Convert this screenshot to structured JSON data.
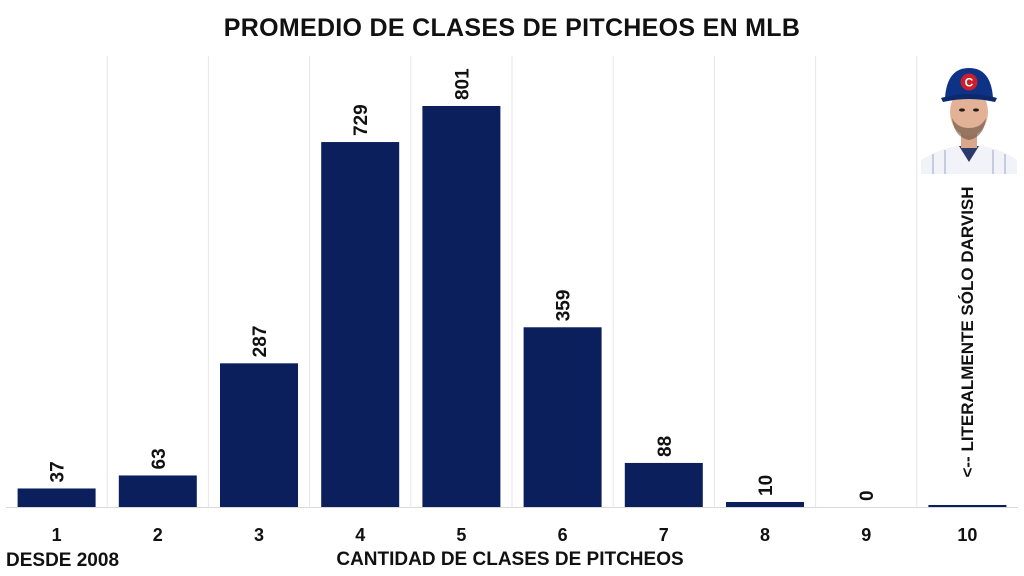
{
  "chart_data": {
    "type": "bar",
    "title": "PROMEDIO DE CLASES DE PITCHEOS EN MLB",
    "xlabel": "CANTIDAD DE CLASES DE PITCHEOS",
    "ylabel": "",
    "categories": [
      "1",
      "2",
      "3",
      "4",
      "5",
      "6",
      "7",
      "8",
      "9",
      "10"
    ],
    "values": [
      37,
      63,
      287,
      729,
      801,
      359,
      88,
      10,
      0,
      1
    ],
    "data_labels": [
      "37",
      "63",
      "287",
      "729",
      "801",
      "359",
      "88",
      "10",
      "0",
      ""
    ],
    "ylim": [
      0,
      801
    ],
    "grid": "vertical",
    "bar_color": "#0a1f5c",
    "footnote": "DESDE 2008",
    "annotation": "<-- LITERALMENTE SÓLO DARVISH"
  },
  "image": {
    "icon": "baseball-player-photo-icon",
    "cap_logo": "C"
  }
}
